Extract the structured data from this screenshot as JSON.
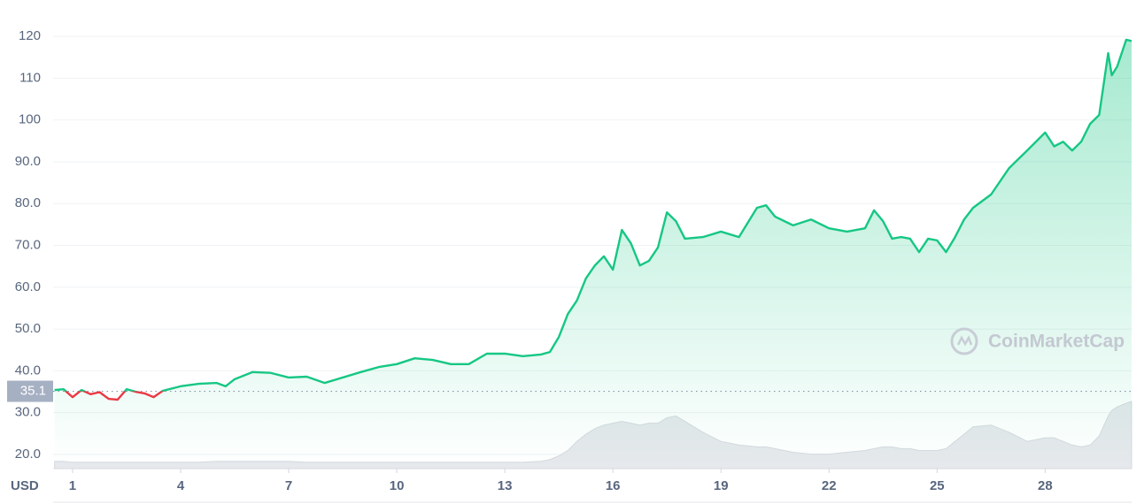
{
  "chart_data": {
    "type": "area",
    "currency_label": "USD",
    "watermark": "CoinMarketCap",
    "up_color": "#16c784",
    "down_color": "#ea3943",
    "reference_line": 35.1,
    "xlim": [
      0.46,
      30.4
    ],
    "ylim": [
      16.6,
      124.9
    ],
    "xticks": [
      1,
      4,
      7,
      10,
      13,
      16,
      19,
      22,
      25,
      28
    ],
    "yticks": [
      {
        "value": 20,
        "label": "20.0"
      },
      {
        "value": 30,
        "label": "30.0"
      },
      {
        "value": 40,
        "label": "40.0"
      },
      {
        "value": 50,
        "label": "50.0"
      },
      {
        "value": 60,
        "label": "60.0"
      },
      {
        "value": 70,
        "label": "70.0"
      },
      {
        "value": 80,
        "label": "80.0"
      },
      {
        "value": 90,
        "label": "90.0"
      },
      100,
      110,
      120
    ],
    "grid": true,
    "x": [
      0.5,
      0.75,
      1,
      1.25,
      1.5,
      1.75,
      2,
      2.25,
      2.5,
      2.75,
      3,
      3.25,
      3.5,
      4,
      4.5,
      5,
      5.25,
      5.5,
      6,
      6.5,
      7,
      7.5,
      8,
      8.5,
      9,
      9.5,
      10,
      10.5,
      11,
      11.5,
      12,
      12.5,
      13,
      13.5,
      14,
      14.25,
      14.5,
      14.75,
      15,
      15.25,
      15.5,
      15.75,
      16,
      16.25,
      16.5,
      16.75,
      17,
      17.25,
      17.5,
      17.75,
      18,
      18.5,
      19,
      19.5,
      20,
      20.25,
      20.5,
      21,
      21.5,
      22,
      22.5,
      23,
      23.25,
      23.5,
      23.75,
      24,
      24.25,
      24.5,
      24.75,
      25,
      25.25,
      25.5,
      25.75,
      26,
      26.5,
      27,
      27.5,
      28,
      28.25,
      28.5,
      28.75,
      29,
      29.25,
      29.5,
      29.75,
      29.85,
      30,
      30.25,
      30.4
    ],
    "values": [
      35.4,
      35.6,
      33.7,
      35.4,
      34.4,
      34.9,
      33.3,
      33.1,
      35.6,
      35.0,
      34.6,
      33.7,
      35.2,
      36.3,
      36.9,
      37.1,
      36.3,
      38.0,
      39.7,
      39.5,
      38.4,
      38.6,
      37.1,
      38.4,
      39.7,
      40.9,
      41.6,
      43.0,
      42.6,
      41.6,
      41.6,
      44.1,
      44.1,
      43.5,
      43.9,
      44.5,
      48.1,
      53.6,
      56.8,
      62.1,
      65.2,
      67.4,
      64.2,
      73.7,
      70.5,
      65.2,
      66.3,
      69.5,
      77.9,
      75.8,
      71.6,
      72.0,
      73.3,
      72.0,
      79.0,
      79.6,
      76.9,
      74.8,
      76.2,
      74.1,
      73.3,
      74.1,
      78.4,
      75.8,
      71.6,
      72.0,
      71.6,
      68.4,
      71.6,
      71.2,
      68.4,
      72.0,
      76.2,
      79.0,
      82.2,
      88.5,
      92.7,
      97.0,
      93.7,
      94.8,
      92.7,
      94.8,
      99.1,
      101.2,
      116.0,
      110.7,
      112.8,
      119.2,
      118.9
    ],
    "volume": [
      8,
      8,
      7,
      7,
      7,
      7,
      7,
      7,
      7,
      7,
      7,
      7,
      7,
      7,
      7,
      8,
      8,
      8,
      8,
      8,
      8,
      7,
      7,
      7,
      7,
      7,
      7,
      7,
      7,
      7,
      7,
      7,
      7,
      7,
      8,
      10,
      14,
      20,
      30,
      38,
      44,
      48,
      50,
      52,
      50,
      48,
      50,
      50,
      56,
      58,
      52,
      40,
      30,
      26,
      24,
      24,
      22,
      18,
      16,
      16,
      18,
      20,
      22,
      24,
      24,
      22,
      22,
      20,
      20,
      20,
      22,
      30,
      38,
      46,
      48,
      40,
      30,
      34,
      34,
      30,
      26,
      24,
      26,
      36,
      58,
      64,
      68,
      72,
      74
    ]
  }
}
